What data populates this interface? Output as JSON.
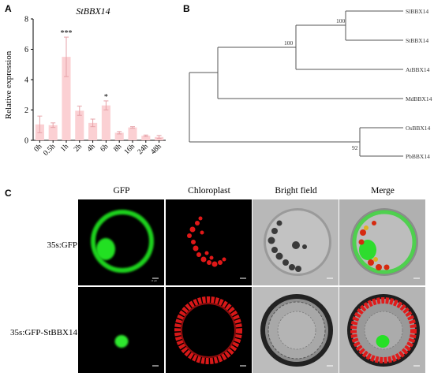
{
  "panel_a": {
    "letter": "A",
    "chart_data": {
      "type": "bar",
      "title": "StBBX14",
      "ylabel": "Relative expression",
      "xlabel": "",
      "categories": [
        "0h",
        "0.5h",
        "1h",
        "2h",
        "4h",
        "6h",
        "8h",
        "16h",
        "24h",
        "48h"
      ],
      "values": [
        1.05,
        1.0,
        5.5,
        1.95,
        1.15,
        2.3,
        0.5,
        0.85,
        0.3,
        0.22
      ],
      "errors": [
        0.55,
        0.15,
        1.3,
        0.3,
        0.25,
        0.3,
        0.08,
        0.05,
        0.05,
        0.1
      ],
      "significance": [
        "",
        "",
        "***",
        "",
        "",
        "*",
        "",
        "",
        "",
        ""
      ],
      "ylim": [
        0,
        8
      ],
      "yticks": [
        0,
        2,
        4,
        6,
        8
      ],
      "bar_color": "#fbd0d3",
      "error_color": "#e6a2a8",
      "grid": false
    }
  },
  "panel_b": {
    "letter": "B",
    "tree": {
      "leaves": [
        "SlBBX14",
        "StBBX14",
        "AtBBX14",
        "MdBBX14",
        "OsBBX14",
        "PbBBX14"
      ],
      "bootstrap": [
        "100",
        "100",
        "92"
      ]
    }
  },
  "panel_c": {
    "letter": "C",
    "columns": [
      "GFP",
      "Chloroplast",
      "Bright field",
      "Merge"
    ],
    "rows": [
      "35s:GFP",
      "35s:GFP-StBBX14"
    ],
    "scale_bar": "10 μm"
  }
}
